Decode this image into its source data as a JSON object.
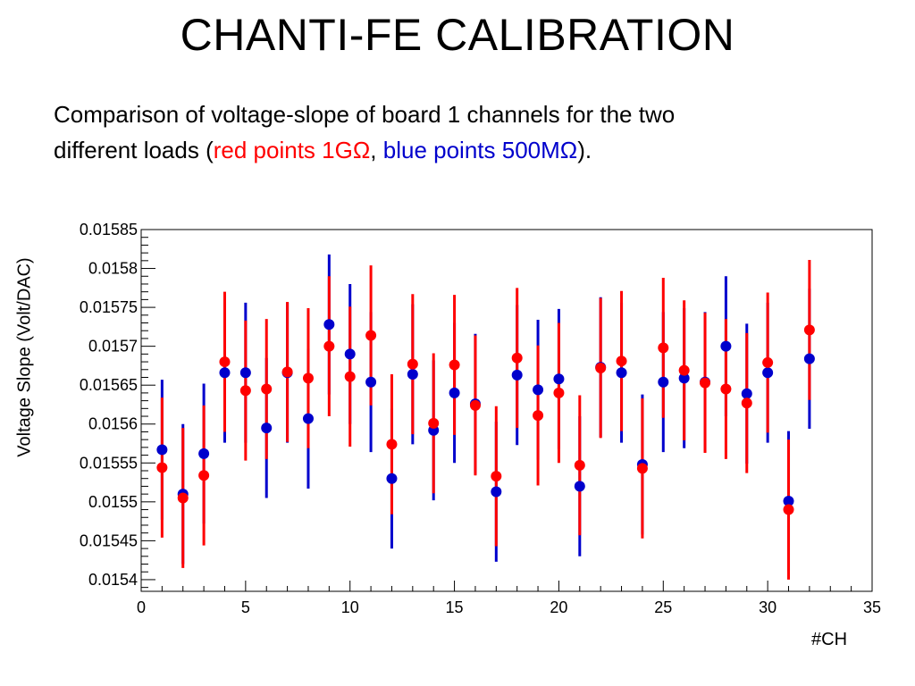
{
  "title": "CHANTI-FE CALIBRATION",
  "subtitle": {
    "line1": "Comparison of voltage-slope of board 1 channels for the two",
    "line2_prefix": "different loads (",
    "red_text": "red points 1GΩ",
    "comma": ",",
    "blue_text": "blue points 500MΩ",
    "line2_suffix": ")."
  },
  "colors": {
    "red": "#ff0000",
    "blue": "#0000cc"
  },
  "chart_data": {
    "type": "scatter",
    "xlabel": "#CH",
    "ylabel": "Voltage Slope (Volt/DAC)",
    "xlim": [
      0,
      35
    ],
    "ylim": [
      0.015385,
      0.01585
    ],
    "x_ticks": [
      0,
      5,
      10,
      15,
      20,
      25,
      30,
      35
    ],
    "y_ticks": [
      0.0154,
      0.01545,
      0.0155,
      0.01555,
      0.0156,
      0.01565,
      0.0157,
      0.01575,
      0.0158,
      0.01585
    ],
    "y_tick_labels": [
      "0.0154",
      "0.01545",
      "0.0155",
      "0.01555",
      "0.0156",
      "0.01565",
      "0.0157",
      "0.01575",
      "0.0158",
      "0.01585"
    ],
    "grid": false,
    "legend": "none",
    "series": [
      {
        "color": "blue",
        "points": [
          {
            "x": 1,
            "y": 0.015567,
            "err": 9e-05
          },
          {
            "x": 2,
            "y": 0.01551,
            "err": 9e-05
          },
          {
            "x": 3,
            "y": 0.015562,
            "err": 9e-05
          },
          {
            "x": 4,
            "y": 0.015666,
            "err": 9e-05
          },
          {
            "x": 5,
            "y": 0.015666,
            "err": 9e-05
          },
          {
            "x": 6,
            "y": 0.015595,
            "err": 9e-05
          },
          {
            "x": 7,
            "y": 0.015666,
            "err": 9e-05
          },
          {
            "x": 8,
            "y": 0.015607,
            "err": 9e-05
          },
          {
            "x": 9,
            "y": 0.015728,
            "err": 9e-05
          },
          {
            "x": 10,
            "y": 0.01569,
            "err": 9e-05
          },
          {
            "x": 11,
            "y": 0.015654,
            "err": 9e-05
          },
          {
            "x": 12,
            "y": 0.01553,
            "err": 9e-05
          },
          {
            "x": 13,
            "y": 0.015664,
            "err": 9e-05
          },
          {
            "x": 14,
            "y": 0.015592,
            "err": 9e-05
          },
          {
            "x": 15,
            "y": 0.01564,
            "err": 9e-05
          },
          {
            "x": 16,
            "y": 0.015626,
            "err": 9e-05
          },
          {
            "x": 17,
            "y": 0.015513,
            "err": 9e-05
          },
          {
            "x": 18,
            "y": 0.015663,
            "err": 9e-05
          },
          {
            "x": 19,
            "y": 0.015644,
            "err": 9e-05
          },
          {
            "x": 20,
            "y": 0.015658,
            "err": 9e-05
          },
          {
            "x": 21,
            "y": 0.01552,
            "err": 9e-05
          },
          {
            "x": 22,
            "y": 0.015673,
            "err": 9e-05
          },
          {
            "x": 23,
            "y": 0.015666,
            "err": 9e-05
          },
          {
            "x": 24,
            "y": 0.015548,
            "err": 9e-05
          },
          {
            "x": 25,
            "y": 0.015654,
            "err": 9e-05
          },
          {
            "x": 26,
            "y": 0.015659,
            "err": 9e-05
          },
          {
            "x": 27,
            "y": 0.015654,
            "err": 9e-05
          },
          {
            "x": 28,
            "y": 0.0157,
            "err": 9e-05
          },
          {
            "x": 29,
            "y": 0.015639,
            "err": 9e-05
          },
          {
            "x": 30,
            "y": 0.015666,
            "err": 9e-05
          },
          {
            "x": 31,
            "y": 0.015501,
            "err": 9e-05
          },
          {
            "x": 32,
            "y": 0.015684,
            "err": 9e-05
          }
        ]
      },
      {
        "color": "red",
        "points": [
          {
            "x": 1,
            "y": 0.015544,
            "err": 9e-05
          },
          {
            "x": 2,
            "y": 0.015505,
            "err": 9e-05
          },
          {
            "x": 3,
            "y": 0.015534,
            "err": 9e-05
          },
          {
            "x": 4,
            "y": 0.01568,
            "err": 9e-05
          },
          {
            "x": 5,
            "y": 0.015643,
            "err": 9e-05
          },
          {
            "x": 6,
            "y": 0.015645,
            "err": 9e-05
          },
          {
            "x": 7,
            "y": 0.015667,
            "err": 9e-05
          },
          {
            "x": 8,
            "y": 0.015659,
            "err": 9e-05
          },
          {
            "x": 9,
            "y": 0.0157,
            "err": 9e-05
          },
          {
            "x": 10,
            "y": 0.015661,
            "err": 9e-05
          },
          {
            "x": 11,
            "y": 0.015714,
            "err": 9e-05
          },
          {
            "x": 12,
            "y": 0.015574,
            "err": 9e-05
          },
          {
            "x": 13,
            "y": 0.015677,
            "err": 9e-05
          },
          {
            "x": 14,
            "y": 0.015601,
            "err": 9e-05
          },
          {
            "x": 15,
            "y": 0.015676,
            "err": 9e-05
          },
          {
            "x": 16,
            "y": 0.015624,
            "err": 9e-05
          },
          {
            "x": 17,
            "y": 0.015533,
            "err": 9e-05
          },
          {
            "x": 18,
            "y": 0.015685,
            "err": 9e-05
          },
          {
            "x": 19,
            "y": 0.015611,
            "err": 9e-05
          },
          {
            "x": 20,
            "y": 0.01564,
            "err": 9e-05
          },
          {
            "x": 21,
            "y": 0.015547,
            "err": 9e-05
          },
          {
            "x": 22,
            "y": 0.015672,
            "err": 9e-05
          },
          {
            "x": 23,
            "y": 0.015681,
            "err": 9e-05
          },
          {
            "x": 24,
            "y": 0.015543,
            "err": 9e-05
          },
          {
            "x": 25,
            "y": 0.015698,
            "err": 9e-05
          },
          {
            "x": 26,
            "y": 0.015669,
            "err": 9e-05
          },
          {
            "x": 27,
            "y": 0.015653,
            "err": 9e-05
          },
          {
            "x": 28,
            "y": 0.015645,
            "err": 9e-05
          },
          {
            "x": 29,
            "y": 0.015627,
            "err": 9e-05
          },
          {
            "x": 30,
            "y": 0.015679,
            "err": 9e-05
          },
          {
            "x": 31,
            "y": 0.01549,
            "err": 9e-05
          },
          {
            "x": 32,
            "y": 0.015721,
            "err": 9e-05
          }
        ]
      }
    ]
  }
}
